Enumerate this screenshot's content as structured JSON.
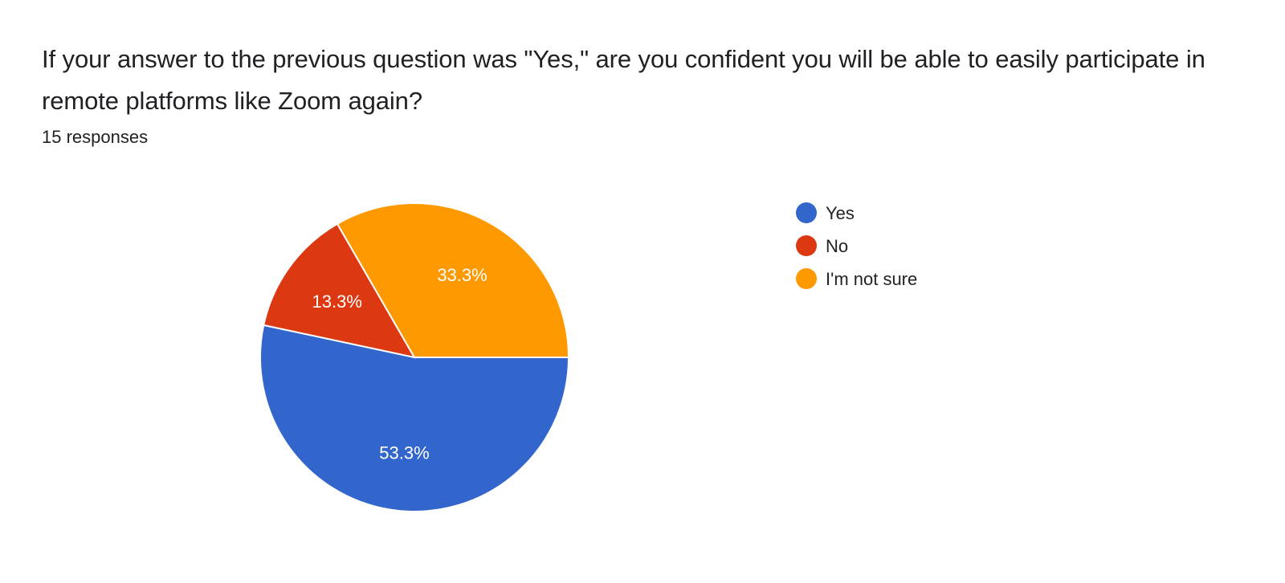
{
  "question": {
    "title": "If your answer to the previous question was \"Yes,\" are you confident you will be able to easily participate in remote platforms like Zoom again?",
    "responses": "15 responses"
  },
  "chart_data": {
    "type": "pie",
    "categories": [
      "Yes",
      "No",
      "I'm not sure"
    ],
    "values": [
      53.3,
      13.3,
      33.3
    ],
    "labels": [
      "53.3%",
      "13.3%",
      "33.3%"
    ],
    "colors": [
      "#3366cc",
      "#dc3912",
      "#ff9900"
    ],
    "legend_position": "right"
  }
}
